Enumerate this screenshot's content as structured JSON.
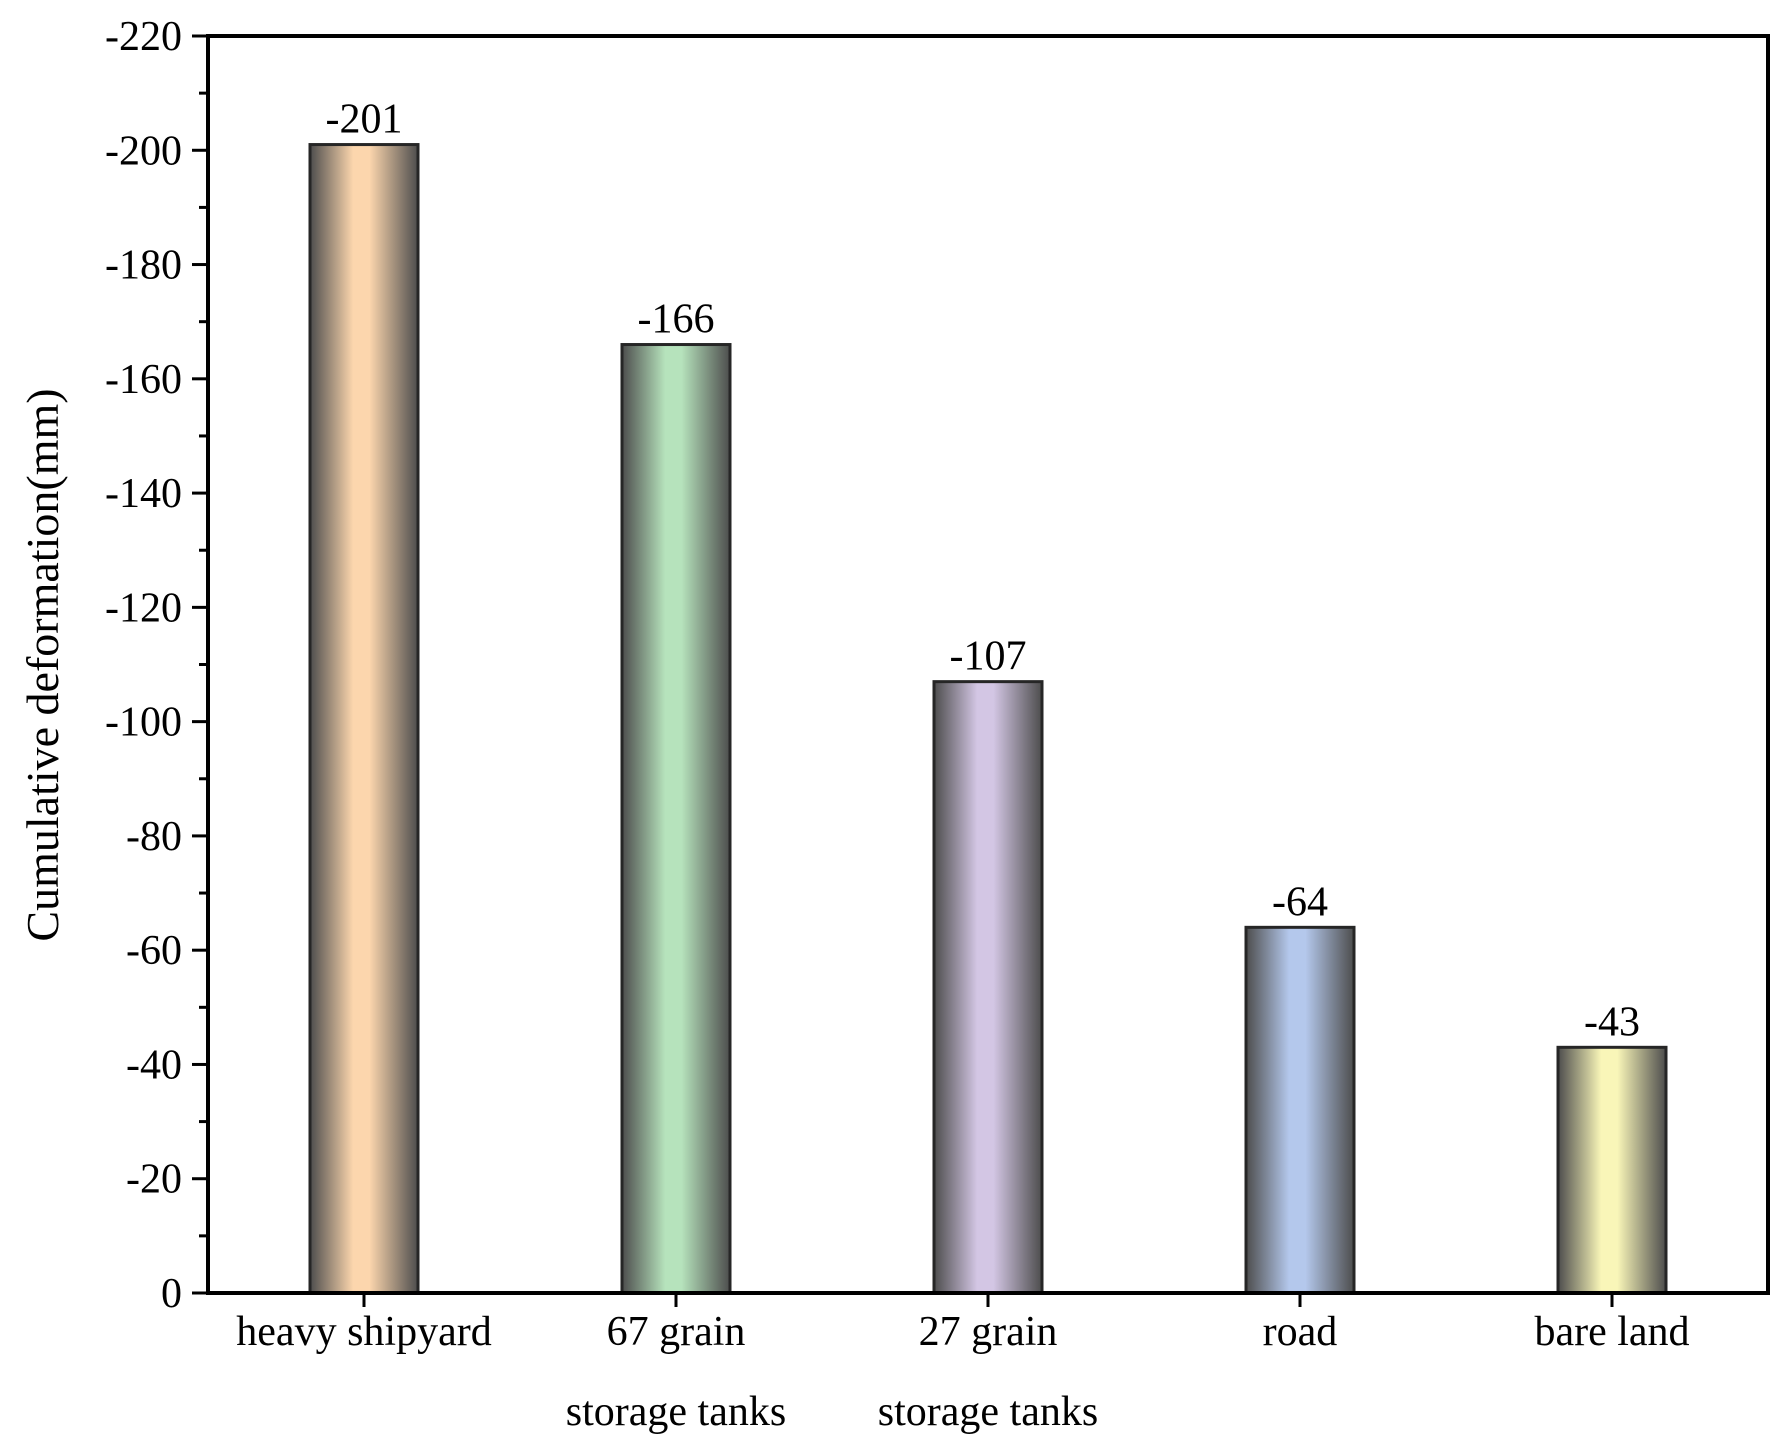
{
  "chart_data": {
    "type": "bar",
    "title": "",
    "xlabel": "",
    "ylabel": "Cumulative deformation(mm)",
    "ylim": [
      0,
      -220
    ],
    "y_axis_inverted": true,
    "yticks": [
      0,
      -20,
      -40,
      -60,
      -80,
      -100,
      -120,
      -140,
      -160,
      -180,
      -200,
      -220
    ],
    "ytick_labels": [
      "0",
      "-20",
      "-40",
      "-60",
      "-80",
      "-100",
      "-120",
      "-140",
      "-160",
      "-180",
      "-200",
      "-220"
    ],
    "grid": false,
    "legend": "none",
    "categories": [
      [
        "heavy shipyard"
      ],
      [
        "67 grain",
        "storage tanks"
      ],
      [
        "27 grain",
        "storage tanks"
      ],
      [
        "road"
      ],
      [
        "bare land"
      ]
    ],
    "values": [
      -201,
      -166,
      -107,
      -64,
      -43
    ],
    "data_labels": [
      "-201",
      "-166",
      "-107",
      "-64",
      "-43"
    ],
    "bar_colors": [
      "#fcd6ad",
      "#b6e3bc",
      "#d3c6e4",
      "#b4c8ec",
      "#f9f6b8"
    ],
    "bar_shade_color": "#4d4d4d"
  }
}
